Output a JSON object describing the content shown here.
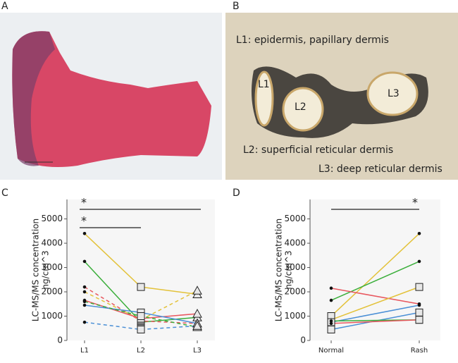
{
  "panels": {
    "a": {
      "letter": "A"
    },
    "b": {
      "letter": "B",
      "captions": [
        "L1: epidermis, papillary dermis",
        "L2: superficial reticular dermis",
        "L3: deep reticular dermis"
      ],
      "regions": [
        "L1",
        "L2",
        "L3"
      ]
    }
  },
  "chart_data": [
    {
      "type": "line",
      "letter": "C",
      "ylabel": [
        "LC-MS/MS concentration",
        "ng/cm^3"
      ],
      "categories": [
        "L1",
        "L2",
        "L3"
      ],
      "ylim": [
        0,
        5800
      ],
      "yticks": [
        0,
        1000,
        2000,
        3000,
        4000,
        5000
      ],
      "annotations": [
        {
          "text": "*",
          "from": "L1",
          "to": "L3",
          "anchor": "start"
        },
        {
          "text": "*",
          "from": "L1",
          "to": "L2",
          "anchor": "start"
        }
      ],
      "series": [
        {
          "color": "#e3c23a",
          "dashed": false,
          "values": [
            4400,
            2200,
            1900
          ],
          "markers": [
            "circle",
            "square",
            "triangle"
          ]
        },
        {
          "color": "#3aae3a",
          "dashed": false,
          "values": [
            3250,
            750,
            950
          ],
          "markers": [
            "circle",
            "square",
            "triangle"
          ]
        },
        {
          "color": "#e8575f",
          "dashed": true,
          "values": [
            2200,
            800,
            700
          ],
          "markers": [
            "circle",
            "square",
            "triangle"
          ]
        },
        {
          "color": "#e3c23a",
          "dashed": true,
          "values": [
            2000,
            850,
            2050
          ],
          "markers": [
            "circle",
            "square",
            "triangle"
          ]
        },
        {
          "color": "#e8575f",
          "dashed": false,
          "values": [
            1650,
            900,
            1100
          ],
          "markers": [
            "circle",
            "square",
            "triangle"
          ]
        },
        {
          "color": "#4a8fd6",
          "dashed": false,
          "values": [
            1450,
            1150,
            700
          ],
          "markers": [
            "circle",
            "square",
            "triangle"
          ]
        },
        {
          "color": "#3aae3a",
          "dashed": true,
          "values": [
            1600,
            1000,
            550
          ],
          "markers": [
            "circle",
            "square",
            "triangle"
          ]
        },
        {
          "color": "#4a8fd6",
          "dashed": true,
          "values": [
            750,
            450,
            600
          ],
          "markers": [
            "circle",
            "square",
            "triangle"
          ]
        }
      ]
    },
    {
      "type": "line",
      "letter": "D",
      "ylabel": [
        "LC-MS/MS concentration",
        "ng/cm^3"
      ],
      "categories": [
        "Normal",
        "Rash"
      ],
      "ylim": [
        0,
        5800
      ],
      "yticks": [
        0,
        1000,
        2000,
        3000,
        4000,
        5000
      ],
      "annotations": [
        {
          "text": "*",
          "from": "Normal",
          "to": "Rash",
          "anchor": "end"
        }
      ],
      "series": [
        {
          "color": "#e3c23a",
          "dashed": false,
          "values": [
            1000,
            4400
          ],
          "markers": [
            "square",
            "circle"
          ]
        },
        {
          "color": "#3aae3a",
          "dashed": false,
          "values": [
            1650,
            3250
          ],
          "markers": [
            "circle",
            "circle"
          ]
        },
        {
          "color": "#e8575f",
          "dashed": false,
          "values": [
            2150,
            1500
          ],
          "markers": [
            "circle",
            "circle"
          ]
        },
        {
          "color": "#e3c23a",
          "dashed": false,
          "values": [
            850,
            2200
          ],
          "markers": [
            "circle",
            "square"
          ]
        },
        {
          "color": "#4a8fd6",
          "dashed": false,
          "values": [
            750,
            1450
          ],
          "markers": [
            "square",
            "circle"
          ]
        },
        {
          "color": "#4a8fd6",
          "dashed": false,
          "values": [
            450,
            1150
          ],
          "markers": [
            "square",
            "square"
          ]
        },
        {
          "color": "#3aae3a",
          "dashed": false,
          "values": [
            800,
            850
          ],
          "markers": [
            "circle",
            "square"
          ]
        },
        {
          "color": "#e8575f",
          "dashed": false,
          "values": [
            700,
            850
          ],
          "markers": [
            "circle",
            "square"
          ]
        }
      ]
    }
  ]
}
